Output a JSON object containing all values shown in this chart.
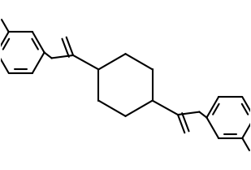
{
  "line_color": "#000000",
  "bg_color": "#ffffff",
  "line_width": 1.5,
  "fig_width": 3.09,
  "fig_height": 2.09,
  "dpi": 100
}
